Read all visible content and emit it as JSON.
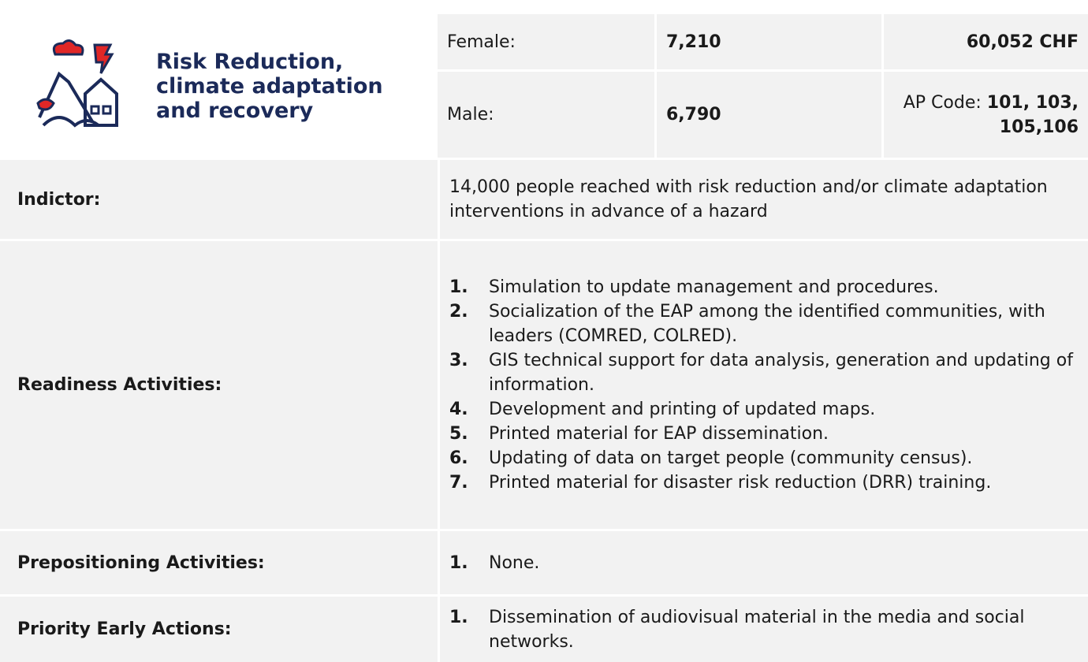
{
  "header": {
    "title": "Risk Reduction, climate adaptation and recovery",
    "female_label": "Female:",
    "female_value": "7,210",
    "budget": "60,052 CHF",
    "male_label": "Male:",
    "male_value": "6,790",
    "ap_code_label": "AP Code:",
    "ap_code_value": "101, 103, 105,106"
  },
  "rows": [
    {
      "label": "Indictor:",
      "text": "14,000 people reached with risk reduction and/or climate adaptation interventions in advance of a hazard"
    },
    {
      "label": "Readiness Activities:",
      "items": [
        {
          "number": "1.",
          "text": "Simulation to update management and procedures."
        },
        {
          "number": "2.",
          "text": "Socialization of the EAP among the identified communities, with leaders (COMRED, COLRED)."
        },
        {
          "number": "3.",
          "text": "GIS technical support for data analysis, generation and updating of information."
        },
        {
          "number": "4.",
          "text": "Development and printing of updated maps."
        },
        {
          "number": "5.",
          "text": "Printed material for EAP dissemination."
        },
        {
          "number": "6.",
          "text": "Updating of data on target people (community census)."
        },
        {
          "number": "7.",
          "text": "Printed material for disaster risk reduction (DRR) training."
        }
      ]
    },
    {
      "label": "Prepositioning Activities:",
      "items": [
        {
          "number": "1.",
          "text": "None."
        }
      ]
    },
    {
      "label": "Priority Early Actions:",
      "items": [
        {
          "number": "1.",
          "text": "Dissemination of audiovisual material in the media and social networks."
        }
      ]
    }
  ]
}
